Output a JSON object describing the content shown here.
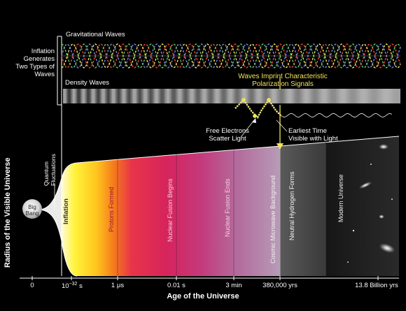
{
  "labels": {
    "gravitational_waves": "Gravitational Waves",
    "density_waves": "Density Waves",
    "inflation_generates": [
      "Inflation",
      "Generates",
      "Two Types of",
      "Waves"
    ],
    "waves_imprint": [
      "Waves Imprint Characteristic",
      "Polarization Signals"
    ],
    "free_electrons": [
      "Free Electrons",
      "Scatter Light"
    ],
    "earliest_time": [
      "Earliest Time",
      "Visible with Light"
    ],
    "quantum_fluctuations": [
      "Quantum",
      "Fluctuations"
    ],
    "big_bang": [
      "Big",
      "Bang"
    ],
    "inflation": "Inflation",
    "y_axis": "Radius of the Visible Universe",
    "x_axis": "Age of the Universe"
  },
  "epochs": [
    "Protons Formed",
    "Nuclear Fusion Begins",
    "Nuclear Fusion Ends",
    "Cosmic Microwave Background",
    "Neutral Hydrogen Forms",
    "Modern Universe"
  ],
  "ticks": {
    "t0": "0",
    "t1_base": "10",
    "t1_exp": "−32",
    "t1_unit": "s",
    "t2": "1 μs",
    "t3": "0.01 s",
    "t4": "3 min",
    "t5": "380,000 yrs",
    "t6": "13.8 Billion yrs"
  },
  "colors": {
    "wave_red": "#e8463c",
    "wave_yellow": "#f2e35a",
    "wave_blue": "#6f8bd8",
    "wave_green": "#6cc26a",
    "annotation": "#f2e35a"
  }
}
